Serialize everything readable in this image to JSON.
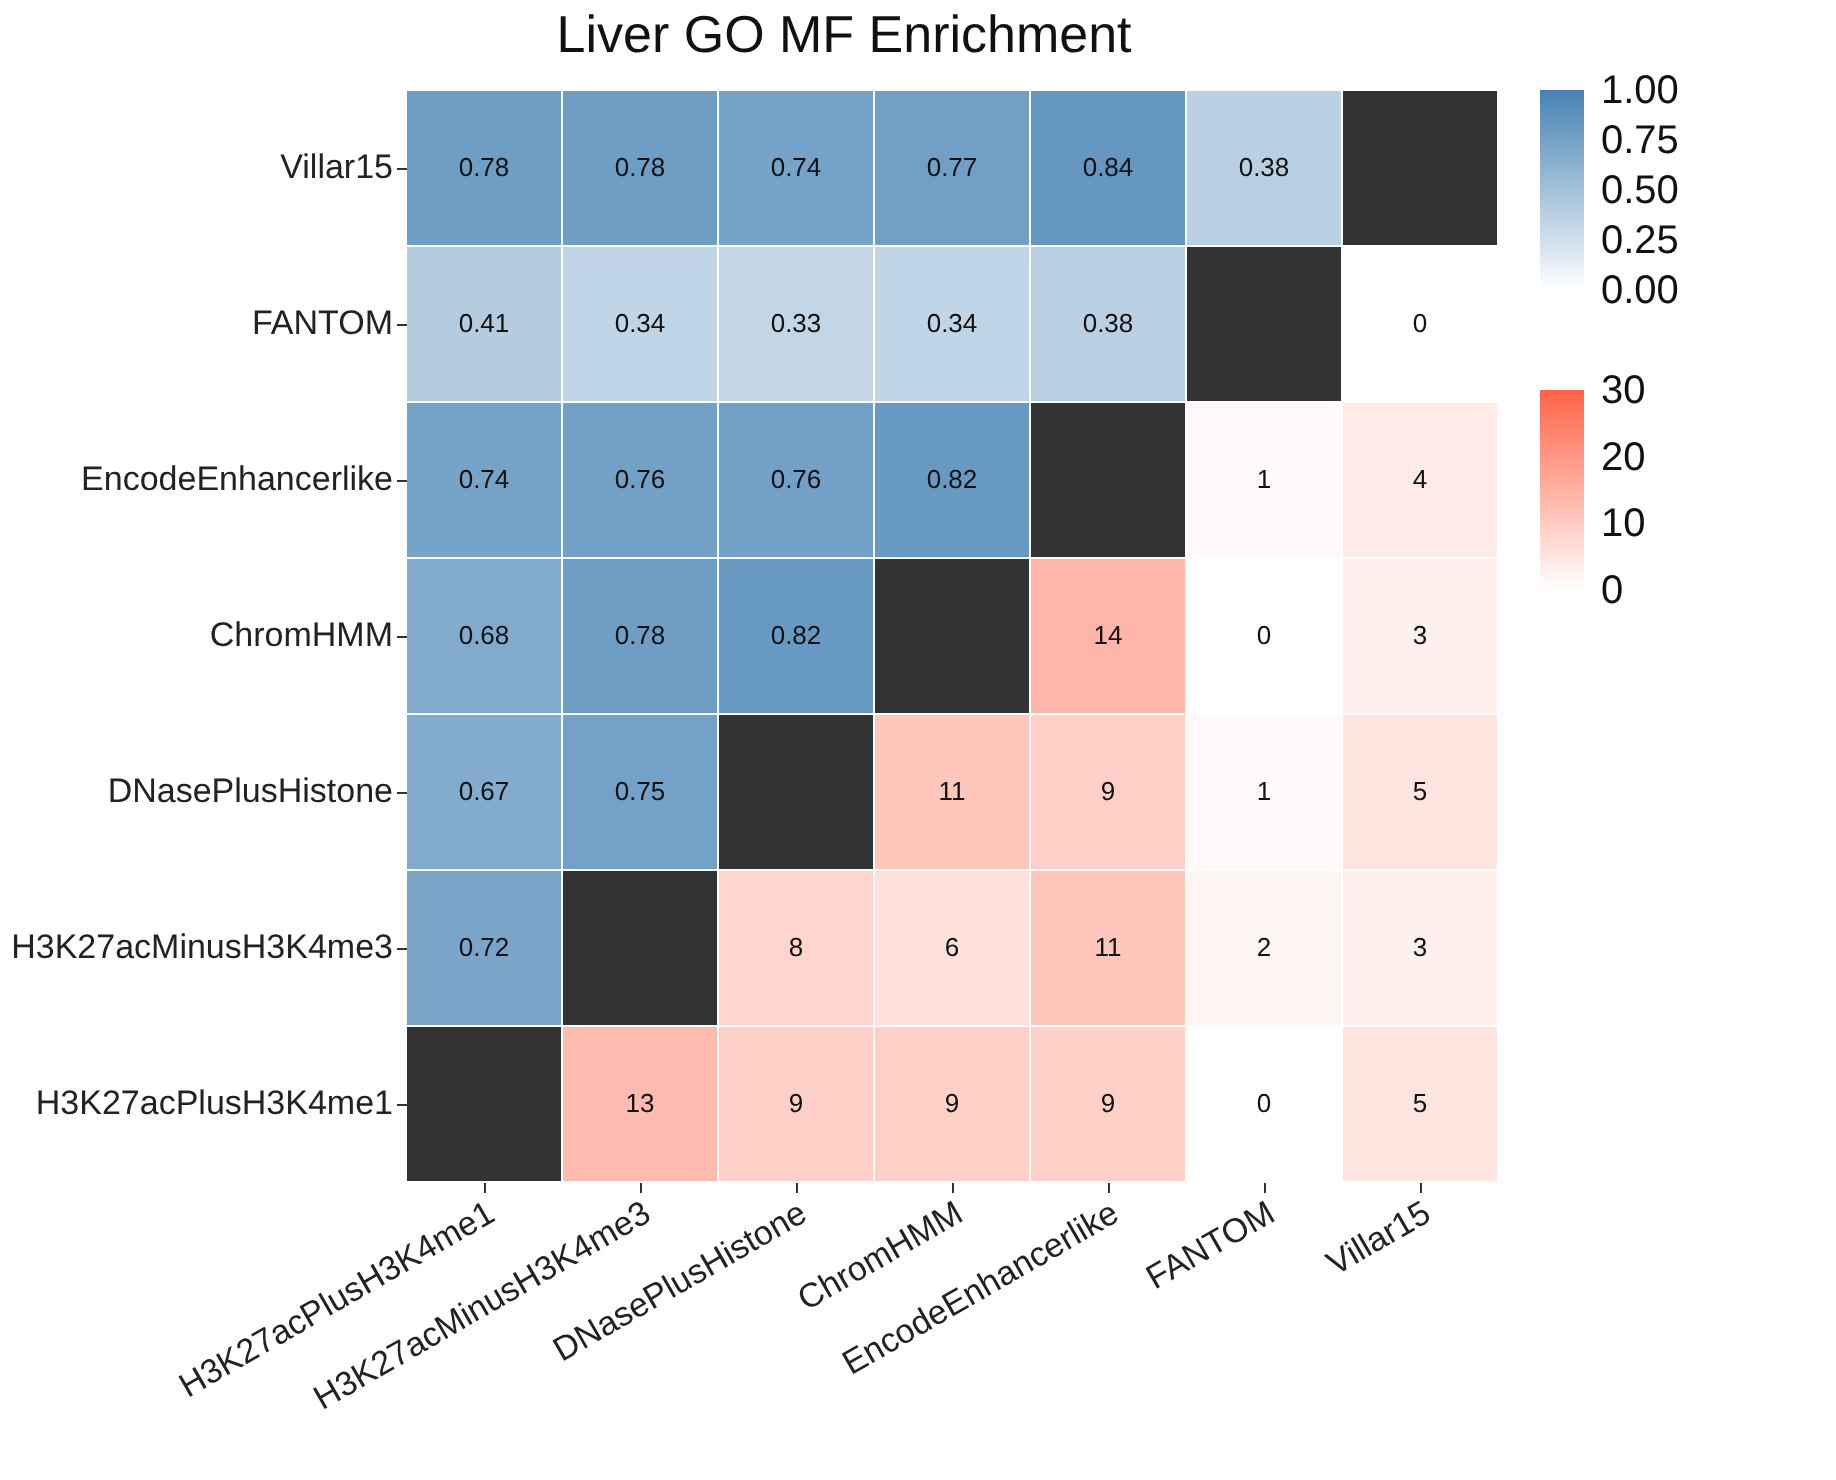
{
  "chart_data": [
    {
      "type": "heatmap",
      "title": "Liver GO MF Enrichment",
      "categories": [
        "H3K27acPlusH3K4me1",
        "H3K27acMinusH3K4me3",
        "DNasePlusHistone",
        "ChromHMM",
        "EncodeEnhancerlike",
        "FANTOM",
        "Villar15"
      ],
      "y_categories": [
        "Villar15",
        "FANTOM",
        "EncodeEnhancerlike",
        "ChromHMM",
        "DNasePlusHistone",
        "H3K27acMinusH3K4me3",
        "H3K27acPlusH3K4me1"
      ],
      "data_labels": true,
      "clim": [
        0,
        1
      ],
      "cticks": [
        {
          "value": 0,
          "label": "0.00"
        },
        {
          "value": 0.25,
          "label": "0.25"
        },
        {
          "value": 0.5,
          "label": "0.50"
        },
        {
          "value": 0.75,
          "label": "0.75"
        },
        {
          "value": 1,
          "label": "1.00"
        }
      ],
      "cells": [
        [
          0.78,
          0.78,
          0.74,
          0.77,
          0.84,
          0.38,
          null
        ],
        [
          0.41,
          0.34,
          0.33,
          0.34,
          0.38,
          null,
          null
        ],
        [
          0.74,
          0.76,
          0.76,
          0.82,
          null,
          null,
          null
        ],
        [
          0.68,
          0.78,
          0.82,
          null,
          null,
          null,
          null
        ],
        [
          0.67,
          0.75,
          null,
          null,
          null,
          null,
          null
        ],
        [
          0.72,
          null,
          null,
          null,
          null,
          null,
          null
        ],
        [
          null,
          null,
          null,
          null,
          null,
          null,
          null
        ]
      ]
    },
    {
      "type": "heatmap",
      "categories": [
        "H3K27acPlusH3K4me1",
        "H3K27acMinusH3K4me3",
        "DNasePlusHistone",
        "ChromHMM",
        "EncodeEnhancerlike",
        "FANTOM",
        "Villar15"
      ],
      "y_categories": [
        "Villar15",
        "FANTOM",
        "EncodeEnhancerlike",
        "ChromHMM",
        "DNasePlusHistone",
        "H3K27acMinusH3K4me3",
        "H3K27acPlusH3K4me1"
      ],
      "tick_labels": false,
      "data_labels": true,
      "clim": [
        0,
        30
      ],
      "cticks": [
        0,
        10,
        20,
        30
      ],
      "cells": [
        [
          null,
          null,
          null,
          null,
          null,
          null,
          null
        ],
        [
          null,
          null,
          null,
          null,
          null,
          null,
          0
        ],
        [
          null,
          null,
          null,
          null,
          null,
          1,
          4
        ],
        [
          null,
          null,
          null,
          null,
          14,
          0,
          3
        ],
        [
          null,
          null,
          null,
          11,
          9,
          1,
          5
        ],
        [
          null,
          null,
          8,
          6,
          11,
          2,
          3
        ],
        [
          null,
          13,
          9,
          9,
          9,
          0,
          5
        ]
      ]
    }
  ]
}
